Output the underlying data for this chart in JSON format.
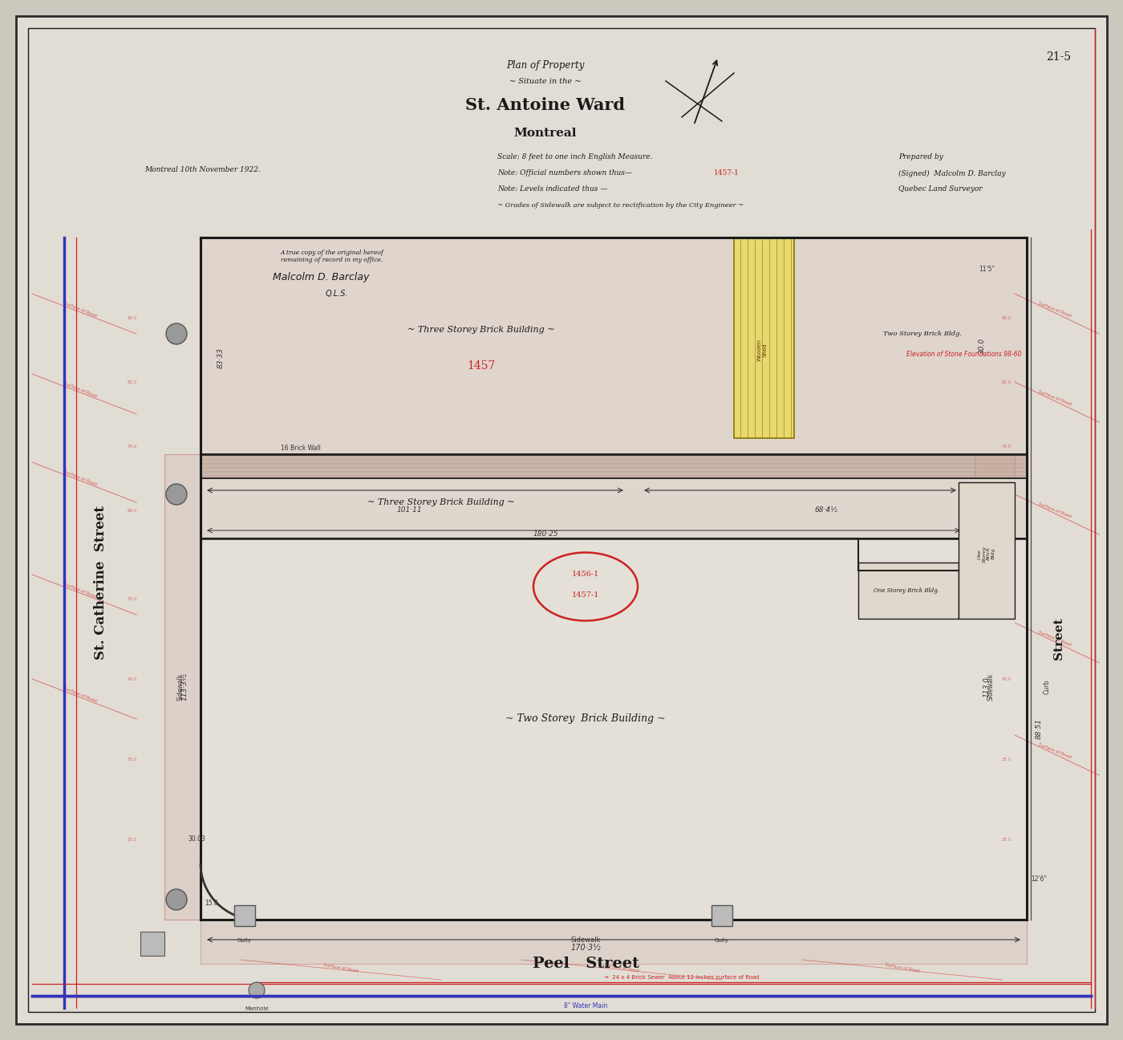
{
  "title_line1": "Plan of Property",
  "title_line2": "~ Situate in the ~",
  "title_line3": "St. Antoine Ward",
  "title_line4": "Montreal",
  "ref_number": "21-5",
  "date_text": "Montreal 10th November 1922.",
  "scale_text": "Scale: 8 feet to one inch English Measure.",
  "note1": "Note: Official numbers shown thus—",
  "note1_number": "1457-1",
  "note2": "Note: Levels indicated thus —",
  "note3": "~ Grades of Sidewalk are subject to rectification by the City Engineer ~",
  "prepared_by": "Prepared by",
  "signed": "(Signed)  Malcolm D. Barclay",
  "surveyor": "Quebec Land Surveyor",
  "bg_color": "#ccc8be",
  "paper_color": "#e2ddd4",
  "outer_border_color": "#2a2a2a",
  "inner_border_color": "#1a1a1a",
  "building_line_color": "#1a1a1a",
  "pink_hatch_color": "#c87070",
  "red_text_color": "#cc2222",
  "blue_line_color": "#3333bb",
  "dim_line_color": "#333333",
  "yellow_fill": "#e8d870",
  "sidewalk_fill": "#d8c8c0",
  "bldg_fill": "#dedad2",
  "lower_bldg_fill": "#e4e0d8"
}
